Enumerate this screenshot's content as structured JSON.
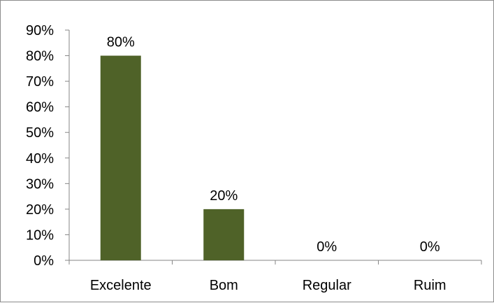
{
  "chart_data": {
    "type": "bar",
    "categories": [
      "Excelente",
      "Bom",
      "Regular",
      "Ruim"
    ],
    "values": [
      80,
      20,
      0,
      0
    ],
    "value_labels": [
      "80%",
      "20%",
      "0%",
      "0%"
    ],
    "ylim": [
      0,
      90
    ],
    "yticks": [
      0,
      10,
      20,
      30,
      40,
      50,
      60,
      70,
      80,
      90
    ],
    "ytick_labels": [
      "0%",
      "10%",
      "20%",
      "30%",
      "40%",
      "50%",
      "60%",
      "70%",
      "80%",
      "90%"
    ],
    "bar_color": "#4f6228",
    "grid": false,
    "legend": "none"
  }
}
